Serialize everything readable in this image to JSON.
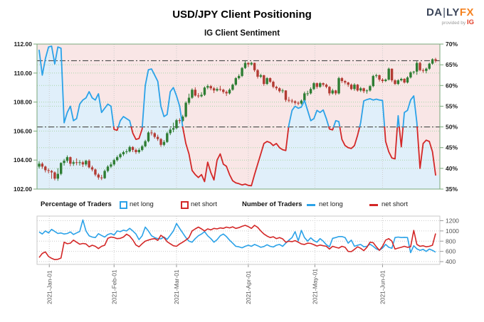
{
  "header": {
    "title": "USD/JPY Client Positioning",
    "subtitle": "IG Client Sentiment",
    "logo": {
      "pre": "DA",
      "bar": "|",
      "post": "LY",
      "fx": "FX",
      "provided_by": "provided by",
      "ig": "IG"
    }
  },
  "legend": {
    "pct_label": "Percentage of Traders",
    "net_long": "net long",
    "net_short": "net short",
    "num_label": "Number of Traders"
  },
  "colors": {
    "up_candle": "#2e7d33",
    "down_candle": "#b33b33",
    "long_line": "#2ba2e8",
    "short_line": "#d32727",
    "long_fill": "#e0effa",
    "short_fill": "#f9e6e6",
    "grid_green": "#a8d5a8",
    "grid_gray": "#cccccc",
    "border_green": "#79a779",
    "border_gray": "#c9c9c9",
    "dashdot": "#4a4a4a",
    "axis_text": "#1a1a1a",
    "minor_text": "#555555"
  },
  "chart_data": {
    "type": [
      "candlestick",
      "line"
    ],
    "instrument": "USD/JPY",
    "title": "IG Client Sentiment",
    "row_format": [
      "date",
      "open",
      "high",
      "low",
      "close",
      "net_long_pct",
      "net_long_traders",
      "net_short_traders"
    ],
    "rows": [
      [
        "12-28",
        103.55,
        103.92,
        103.42,
        103.75,
        68.5,
        980,
        480
      ],
      [
        "12-29",
        103.75,
        103.85,
        103.4,
        103.55,
        62.5,
        940,
        560
      ],
      [
        "12-30",
        103.55,
        103.62,
        103.15,
        103.3,
        66.5,
        1000,
        590
      ],
      [
        "12-31",
        103.3,
        103.42,
        103.08,
        103.25,
        69.3,
        960,
        500
      ],
      [
        "01-04",
        103.25,
        103.32,
        102.71,
        103.15,
        69.5,
        1030,
        465
      ],
      [
        "01-05",
        103.15,
        103.22,
        102.6,
        102.72,
        65.2,
        990,
        440
      ],
      [
        "01-06",
        102.72,
        103.44,
        102.57,
        103.05,
        69.3,
        950,
        445
      ],
      [
        "01-07",
        103.05,
        103.85,
        102.95,
        103.8,
        69.0,
        960,
        470
      ],
      [
        "01-08",
        103.8,
        104.08,
        103.62,
        103.95,
        51.0,
        940,
        780
      ],
      [
        "01-11",
        103.95,
        104.32,
        103.82,
        104.2,
        53.5,
        950,
        750
      ],
      [
        "01-12",
        104.2,
        104.25,
        103.58,
        103.75,
        55.0,
        980,
        760
      ],
      [
        "01-13",
        103.75,
        103.98,
        103.6,
        103.85,
        51.5,
        930,
        820
      ],
      [
        "01-14",
        103.85,
        104.12,
        103.64,
        103.8,
        52.0,
        960,
        780
      ],
      [
        "01-15",
        103.8,
        104.0,
        103.62,
        103.85,
        55.5,
        990,
        740
      ],
      [
        "01-18",
        103.85,
        103.95,
        103.52,
        103.7,
        56.5,
        1215,
        755
      ],
      [
        "01-19",
        103.7,
        104.02,
        103.58,
        103.95,
        57.0,
        1000,
        745
      ],
      [
        "01-20",
        103.95,
        104.05,
        103.42,
        103.5,
        58.5,
        905,
        690
      ],
      [
        "01-21",
        103.5,
        103.62,
        103.22,
        103.35,
        57.0,
        880,
        720
      ],
      [
        "01-22",
        103.35,
        103.42,
        102.88,
        103.0,
        56.5,
        870,
        700
      ],
      [
        "01-25",
        103.0,
        103.1,
        102.65,
        102.8,
        58.0,
        945,
        655
      ],
      [
        "01-26",
        102.8,
        102.98,
        102.62,
        102.75,
        53.5,
        910,
        700
      ],
      [
        "01-27",
        102.75,
        103.35,
        102.7,
        103.25,
        54.5,
        880,
        720
      ],
      [
        "01-28",
        103.25,
        103.65,
        103.15,
        103.55,
        55.5,
        930,
        855
      ],
      [
        "01-29",
        103.55,
        103.85,
        103.45,
        103.7,
        55.0,
        950,
        880
      ],
      [
        "02-01",
        103.7,
        104.1,
        103.6,
        104.0,
        49.4,
        920,
        870
      ],
      [
        "02-02",
        104.0,
        104.32,
        103.9,
        104.2,
        49.2,
        1000,
        850
      ],
      [
        "02-03",
        104.2,
        104.5,
        104.1,
        104.4,
        51.5,
        985,
        855
      ],
      [
        "02-04",
        104.4,
        104.65,
        104.28,
        104.55,
        52.5,
        1015,
        880
      ],
      [
        "02-05",
        104.55,
        104.75,
        104.42,
        104.6,
        52.0,
        1000,
        935
      ],
      [
        "02-08",
        104.6,
        105.0,
        104.52,
        104.9,
        51.5,
        1050,
        900
      ],
      [
        "02-09",
        104.9,
        104.96,
        104.55,
        104.7,
        48.5,
        1000,
        825
      ],
      [
        "02-10",
        104.7,
        104.8,
        104.42,
        104.55,
        47.0,
        940,
        725
      ],
      [
        "02-11",
        104.55,
        104.82,
        104.45,
        104.7,
        47.2,
        830,
        690
      ],
      [
        "02-12",
        104.7,
        105.05,
        104.6,
        104.95,
        49.5,
        905,
        750
      ],
      [
        "02-15",
        104.95,
        105.4,
        104.88,
        105.3,
        60.0,
        1075,
        800
      ],
      [
        "02-16",
        105.3,
        105.98,
        105.22,
        105.9,
        63.8,
        1000,
        820
      ],
      [
        "02-17",
        105.9,
        106.08,
        105.7,
        105.85,
        64.0,
        905,
        840
      ],
      [
        "02-18",
        105.85,
        105.92,
        105.48,
        105.6,
        62.5,
        870,
        850
      ],
      [
        "02-19",
        105.6,
        105.75,
        105.32,
        105.45,
        61.0,
        850,
        815
      ],
      [
        "02-22",
        105.45,
        105.52,
        104.92,
        105.05,
        55.0,
        845,
        915
      ],
      [
        "02-23",
        105.05,
        105.38,
        104.95,
        105.25,
        52.5,
        880,
        870
      ],
      [
        "02-24",
        105.25,
        105.95,
        105.18,
        105.85,
        53.0,
        835,
        790
      ],
      [
        "02-25",
        105.85,
        106.22,
        105.72,
        106.1,
        58.5,
        915,
        750
      ],
      [
        "02-26",
        106.1,
        106.58,
        105.92,
        106.2,
        59.5,
        1000,
        710
      ],
      [
        "03-01",
        106.2,
        106.85,
        106.12,
        106.75,
        57.5,
        1145,
        700
      ],
      [
        "03-02",
        106.75,
        106.88,
        106.52,
        106.7,
        55.0,
        1050,
        745
      ],
      [
        "03-03",
        106.7,
        107.12,
        106.62,
        107.0,
        50.0,
        960,
        780
      ],
      [
        "03-04",
        107.0,
        108.05,
        106.92,
        107.95,
        46.0,
        870,
        820
      ],
      [
        "03-05",
        107.95,
        108.58,
        107.82,
        108.3,
        43.5,
        800,
        870
      ],
      [
        "03-08",
        108.3,
        108.95,
        108.22,
        108.85,
        39.5,
        780,
        1000
      ],
      [
        "03-09",
        108.85,
        109.02,
        108.38,
        108.45,
        38.5,
        850,
        1040
      ],
      [
        "03-10",
        108.45,
        108.62,
        108.28,
        108.4,
        37.8,
        905,
        1075
      ],
      [
        "03-11",
        108.4,
        108.68,
        108.32,
        108.5,
        38.5,
        940,
        1040
      ],
      [
        "03-12",
        108.5,
        109.08,
        108.42,
        109.0,
        36.8,
        985,
        1000
      ],
      [
        "03-15",
        109.0,
        109.22,
        108.88,
        109.1,
        41.5,
        905,
        1040
      ],
      [
        "03-16",
        109.1,
        109.18,
        108.82,
        108.95,
        39.0,
        850,
        1020
      ],
      [
        "03-17",
        108.95,
        109.05,
        108.62,
        108.8,
        37.2,
        780,
        1050
      ],
      [
        "03-18",
        108.8,
        109.02,
        108.72,
        108.9,
        42.0,
        830,
        1040
      ],
      [
        "03-19",
        108.9,
        109.12,
        108.75,
        108.85,
        43.5,
        905,
        1060
      ],
      [
        "03-22",
        108.85,
        108.92,
        108.58,
        108.7,
        41.0,
        940,
        1050
      ],
      [
        "03-23",
        108.7,
        108.8,
        108.42,
        108.6,
        40.5,
        890,
        1075
      ],
      [
        "03-24",
        108.6,
        108.95,
        108.52,
        108.85,
        38.5,
        820,
        1060
      ],
      [
        "03-25",
        108.85,
        109.28,
        108.78,
        109.2,
        37.0,
        760,
        1080
      ],
      [
        "03-26",
        109.2,
        109.72,
        109.12,
        109.65,
        36.5,
        700,
        1050
      ],
      [
        "03-29",
        109.65,
        109.92,
        109.55,
        109.8,
        36.3,
        690,
        1065
      ],
      [
        "03-30",
        109.8,
        110.42,
        109.72,
        110.35,
        36.0,
        670,
        1090
      ],
      [
        "03-31",
        110.35,
        110.88,
        110.28,
        110.7,
        36.2,
        700,
        1110
      ],
      [
        "04-01",
        110.7,
        110.75,
        110.42,
        110.6,
        35.9,
        720,
        1085
      ],
      [
        "04-02",
        110.6,
        110.78,
        110.52,
        110.7,
        35.8,
        700,
        1050
      ],
      [
        "04-05",
        110.7,
        110.72,
        110.08,
        110.2,
        38.5,
        735,
        1110
      ],
      [
        "04-06",
        110.2,
        110.28,
        109.62,
        109.75,
        41.0,
        710,
        1070
      ],
      [
        "04-07",
        109.75,
        109.95,
        109.65,
        109.85,
        43.5,
        680,
        1000
      ],
      [
        "04-08",
        109.85,
        109.88,
        109.12,
        109.25,
        46.0,
        695,
        940
      ],
      [
        "04-09",
        109.25,
        109.72,
        109.18,
        109.65,
        46.5,
        730,
        900
      ],
      [
        "04-12",
        109.65,
        109.7,
        109.32,
        109.4,
        46.2,
        700,
        870
      ],
      [
        "04-13",
        109.4,
        109.48,
        108.95,
        109.05,
        45.5,
        685,
        885
      ],
      [
        "04-14",
        109.05,
        109.12,
        108.82,
        108.95,
        46.0,
        720,
        850
      ],
      [
        "04-15",
        108.95,
        109.02,
        108.65,
        108.75,
        45.0,
        735,
        870
      ],
      [
        "04-16",
        108.75,
        108.92,
        108.62,
        108.8,
        44.5,
        700,
        845
      ],
      [
        "04-19",
        108.8,
        108.82,
        108.02,
        108.15,
        44.3,
        760,
        780
      ],
      [
        "04-20",
        108.15,
        108.35,
        107.98,
        108.1,
        50.5,
        820,
        800
      ],
      [
        "04-21",
        108.1,
        108.22,
        107.92,
        108.05,
        54.0,
        870,
        790
      ],
      [
        "04-22",
        108.05,
        108.12,
        107.82,
        107.95,
        55.0,
        985,
        810
      ],
      [
        "04-23",
        107.95,
        108.05,
        107.78,
        107.9,
        54.5,
        805,
        780
      ],
      [
        "04-26",
        107.9,
        108.18,
        107.82,
        108.1,
        54.8,
        1010,
        745
      ],
      [
        "04-27",
        108.1,
        108.72,
        108.02,
        108.6,
        56.4,
        870,
        735
      ],
      [
        "04-28",
        108.6,
        108.78,
        108.42,
        108.6,
        54.0,
        800,
        760
      ],
      [
        "04-29",
        108.6,
        109.02,
        108.52,
        108.9,
        51.5,
        865,
        755
      ],
      [
        "04-30",
        108.9,
        109.38,
        108.82,
        109.3,
        52.0,
        810,
        730
      ],
      [
        "05-03",
        109.3,
        109.35,
        108.92,
        109.05,
        54.0,
        780,
        705
      ],
      [
        "05-04",
        109.05,
        109.38,
        108.98,
        109.3,
        53.5,
        850,
        725
      ],
      [
        "05-05",
        109.3,
        109.35,
        109.08,
        109.2,
        54.1,
        800,
        710
      ],
      [
        "05-06",
        109.2,
        109.28,
        108.95,
        109.05,
        52.0,
        730,
        700
      ],
      [
        "05-07",
        109.05,
        109.1,
        108.45,
        108.6,
        49.5,
        690,
        645
      ],
      [
        "05-10",
        108.6,
        108.92,
        108.52,
        108.8,
        49.3,
        855,
        700
      ],
      [
        "05-11",
        108.8,
        108.85,
        108.48,
        108.6,
        51.5,
        870,
        680
      ],
      [
        "05-12",
        108.6,
        109.75,
        108.52,
        109.65,
        51.3,
        890,
        665
      ],
      [
        "05-13",
        109.65,
        109.72,
        109.32,
        109.45,
        47.0,
        890,
        700
      ],
      [
        "05-14",
        109.45,
        109.52,
        109.22,
        109.35,
        45.5,
        870,
        680
      ],
      [
        "05-17",
        109.35,
        109.4,
        109.05,
        109.2,
        45.0,
        760,
        600
      ],
      [
        "05-18",
        109.2,
        109.28,
        108.82,
        108.9,
        44.8,
        820,
        595
      ],
      [
        "05-19",
        108.9,
        109.3,
        108.78,
        109.2,
        45.5,
        700,
        640
      ],
      [
        "05-20",
        109.2,
        109.25,
        108.72,
        108.8,
        48.0,
        720,
        690
      ],
      [
        "05-21",
        108.8,
        109.05,
        108.7,
        108.95,
        51.0,
        735,
        660
      ],
      [
        "05-24",
        108.95,
        109.0,
        108.62,
        108.75,
        56.3,
        690,
        615
      ],
      [
        "05-25",
        108.75,
        108.88,
        108.58,
        108.8,
        56.6,
        700,
        680
      ],
      [
        "05-26",
        108.8,
        109.18,
        108.72,
        109.1,
        56.8,
        740,
        780
      ],
      [
        "05-27",
        109.1,
        109.88,
        109.02,
        109.8,
        56.5,
        700,
        770
      ],
      [
        "05-28",
        109.8,
        109.95,
        109.68,
        109.85,
        56.7,
        650,
        690
      ],
      [
        "05-31",
        109.85,
        109.9,
        109.42,
        109.55,
        56.5,
        625,
        620
      ],
      [
        "06-01",
        109.55,
        109.65,
        109.32,
        109.45,
        56.4,
        665,
        700
      ],
      [
        "06-02",
        109.45,
        109.62,
        109.38,
        109.55,
        46.5,
        735,
        820
      ],
      [
        "06-03",
        109.55,
        110.38,
        109.48,
        110.3,
        44.0,
        680,
        850
      ],
      [
        "06-04",
        110.3,
        110.32,
        109.38,
        109.5,
        42.5,
        660,
        800
      ],
      [
        "06-07",
        109.5,
        109.58,
        109.18,
        109.25,
        42.3,
        870,
        645
      ],
      [
        "06-08",
        109.25,
        109.58,
        109.18,
        109.5,
        52.7,
        880,
        665
      ],
      [
        "06-09",
        109.5,
        109.68,
        109.42,
        109.6,
        45.2,
        870,
        680
      ],
      [
        "06-10",
        109.6,
        109.65,
        109.28,
        109.35,
        53.5,
        875,
        700
      ],
      [
        "06-11",
        109.35,
        109.78,
        109.28,
        109.7,
        54.0,
        870,
        680
      ],
      [
        "06-14",
        109.7,
        110.12,
        109.62,
        110.05,
        56.5,
        575,
        690
      ],
      [
        "06-15",
        110.05,
        110.15,
        109.92,
        110.1,
        57.5,
        710,
        1010
      ],
      [
        "06-16",
        110.1,
        110.82,
        109.88,
        110.7,
        51.0,
        650,
        735
      ],
      [
        "06-17",
        110.7,
        110.78,
        110.12,
        110.2,
        40.0,
        620,
        700
      ],
      [
        "06-18",
        110.2,
        110.32,
        110.02,
        110.15,
        46.0,
        640,
        710
      ],
      [
        "06-21",
        110.15,
        110.38,
        109.98,
        110.3,
        46.8,
        600,
        690
      ],
      [
        "06-22",
        110.3,
        110.72,
        110.22,
        110.65,
        46.5,
        645,
        700
      ],
      [
        "06-23",
        110.65,
        111.02,
        110.58,
        110.95,
        44.0,
        620,
        720
      ],
      [
        "06-24",
        110.95,
        111.05,
        110.72,
        110.85,
        38.4,
        585,
        950
      ]
    ],
    "price_axis": {
      "side": "left",
      "min": 102,
      "max": 112,
      "tick_step": 2,
      "labels": [
        "112.00",
        "110.00",
        "108.00",
        "106.00",
        "104.00",
        "102.00"
      ]
    },
    "pct_axis": {
      "side": "right",
      "min": 35,
      "max": 70,
      "tick_step": 5,
      "labels": [
        "70%",
        "65%",
        "60%",
        "55%",
        "50%",
        "45%",
        "40%",
        "35%"
      ]
    },
    "count_axis": {
      "side": "right",
      "min": 345,
      "max": 1290,
      "tick_values": [
        1200,
        1000,
        800,
        600,
        400
      ],
      "labels": [
        "1200",
        "1000",
        "800",
        "600",
        "400"
      ]
    },
    "month_ticks": [
      {
        "label": "2021-Jan-01",
        "index": 3.25
      },
      {
        "label": "2021-Feb-01",
        "index": 24
      },
      {
        "label": "2021-Mar-01",
        "index": 44
      },
      {
        "label": "2021-Apr-01",
        "index": 67
      },
      {
        "label": "2021-May-01",
        "index": 88.33
      },
      {
        "label": "2021-Jun-01",
        "index": 110
      }
    ],
    "reference_lines": {
      "sentiment_midline_pct": 50,
      "current_price": 110.85
    },
    "grid": true,
    "legend_position": "between-panels"
  }
}
